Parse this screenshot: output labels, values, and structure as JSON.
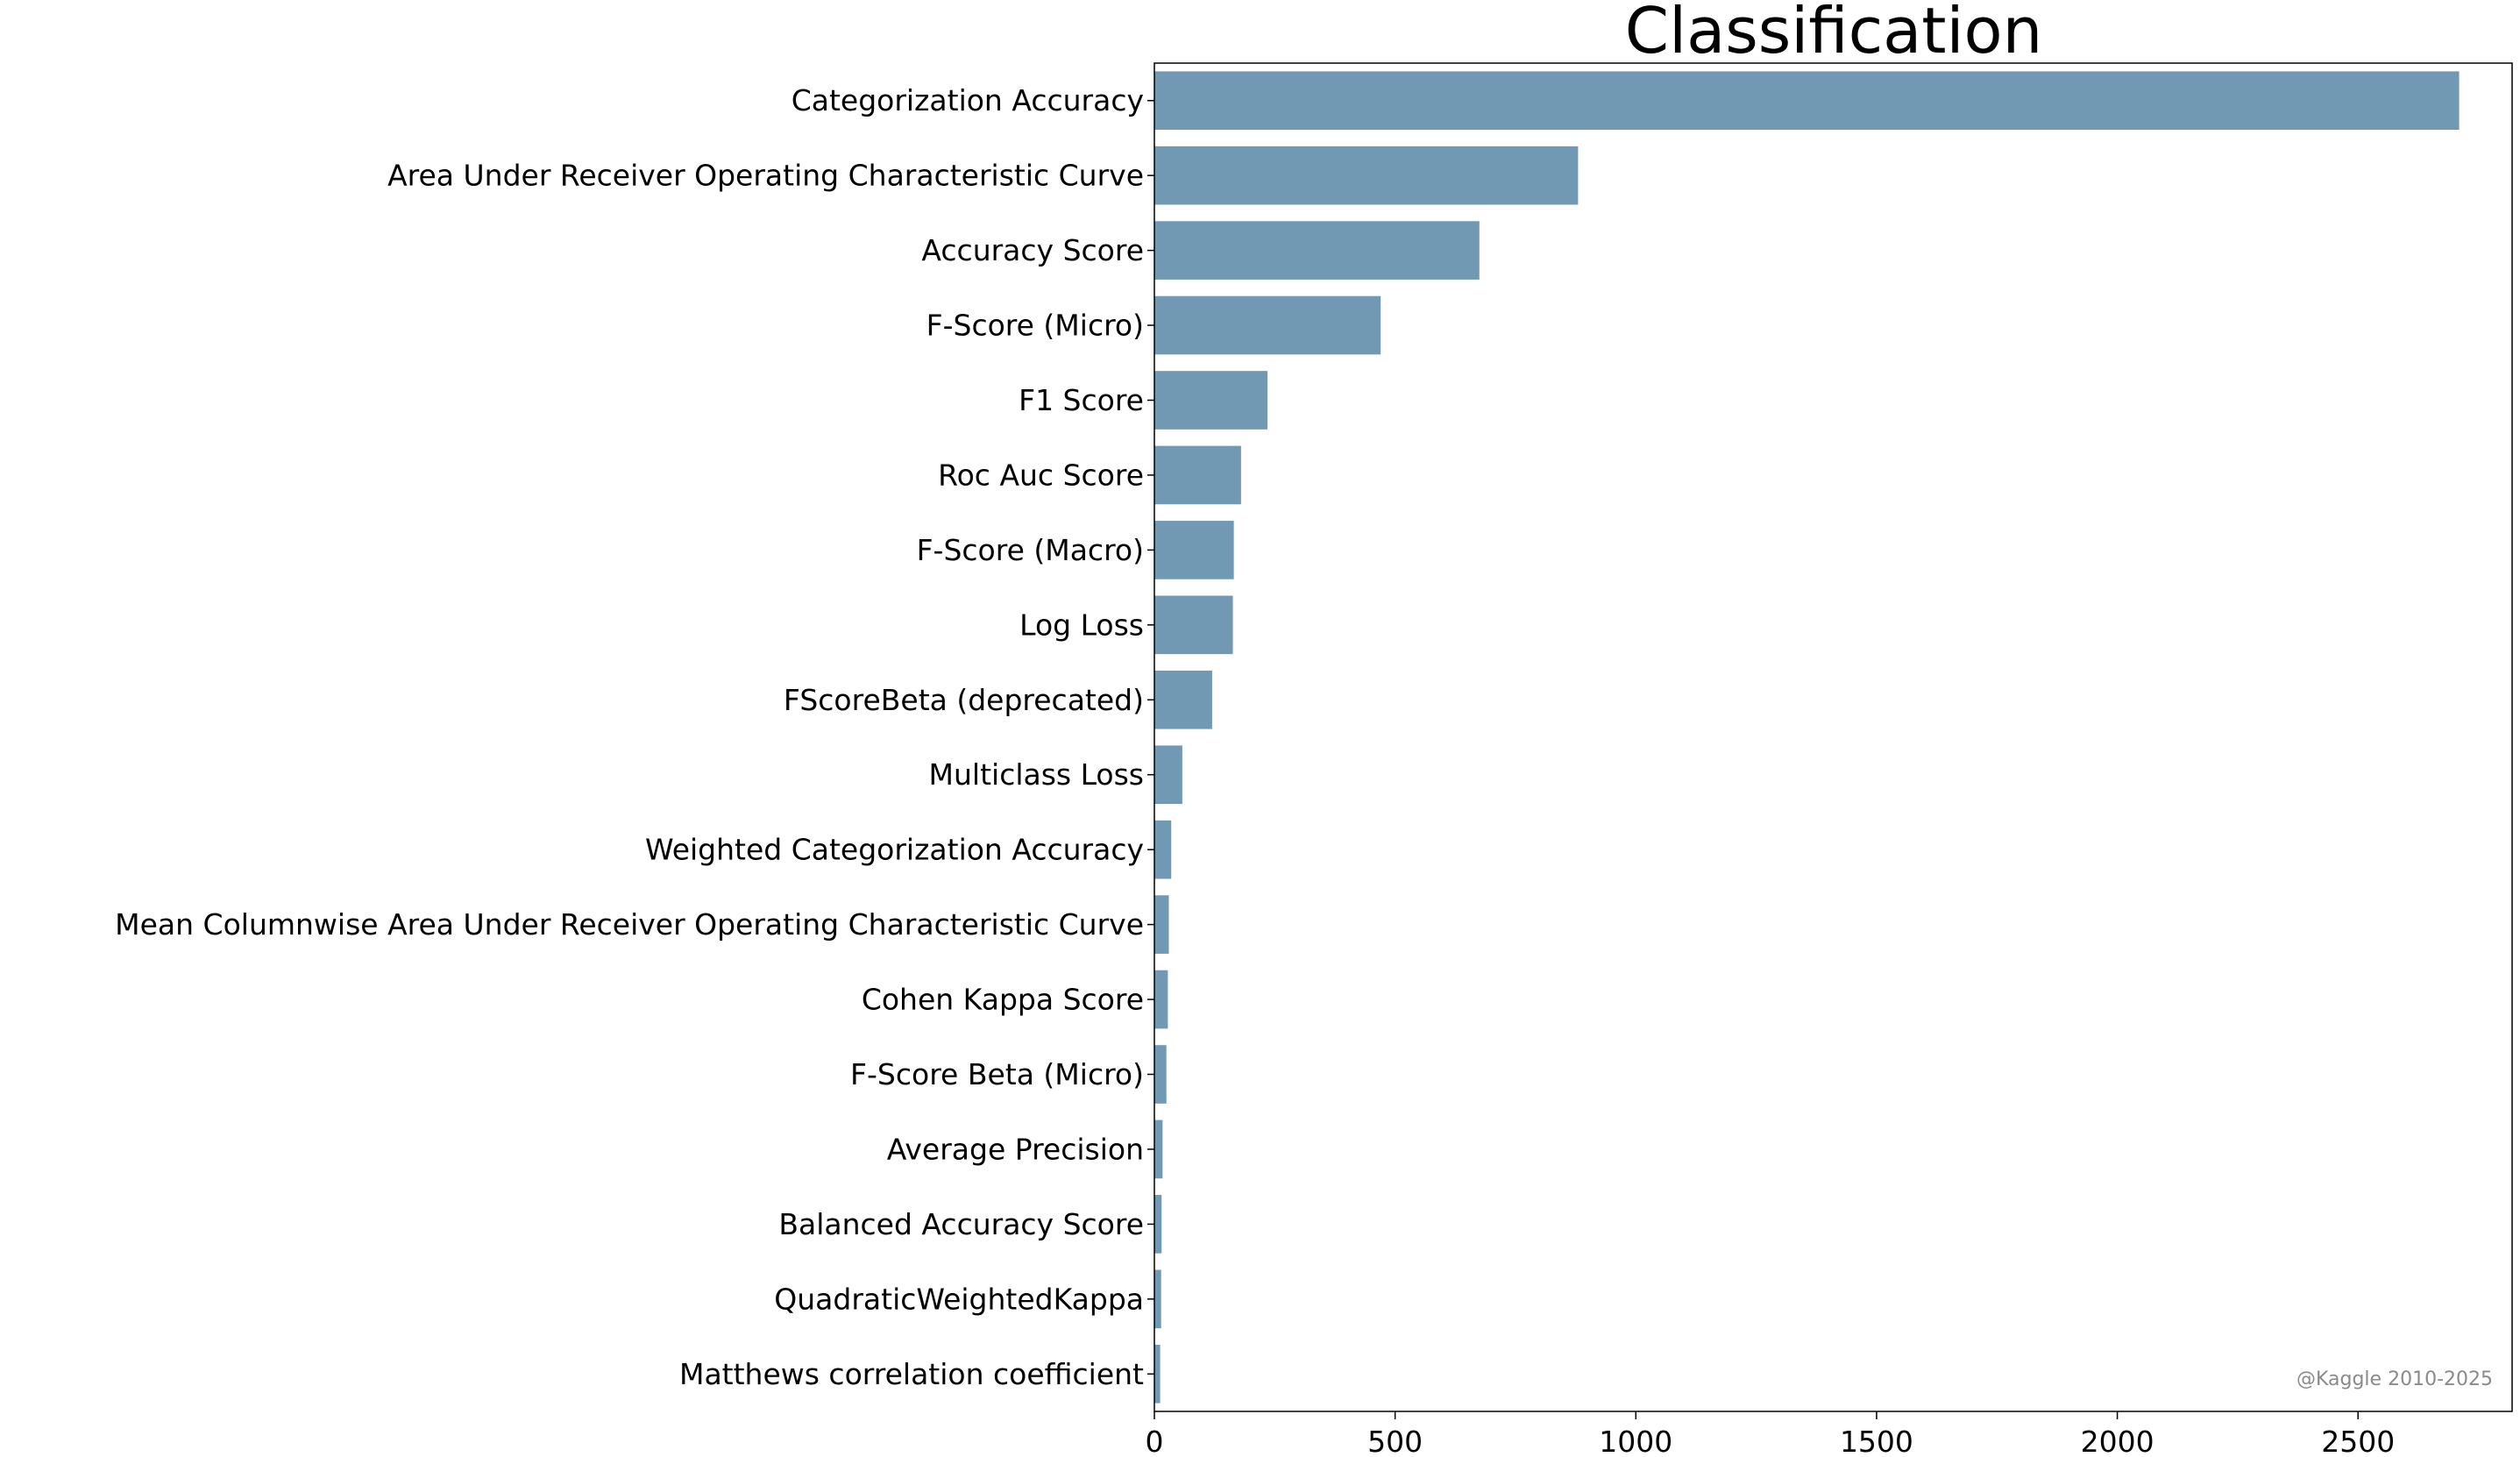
{
  "chart_data": {
    "type": "bar",
    "orientation": "horizontal",
    "title": "Classification",
    "xlabel": "",
    "ylabel": "",
    "xlim": [
      0,
      2820
    ],
    "x_ticks": [
      0,
      500,
      1000,
      1500,
      2000,
      2500
    ],
    "grid": false,
    "bar_color": "#7199b4",
    "categories": [
      "Categorization Accuracy",
      "Area Under Receiver Operating Characteristic Curve",
      "Accuracy Score",
      "F-Score (Micro)",
      "F1 Score",
      "Roc Auc Score",
      "F-Score (Macro)",
      "Log Loss",
      "FScoreBeta (deprecated)",
      "Multiclass Loss",
      "Weighted Categorization Accuracy",
      "Mean Columnwise Area Under Receiver Operating Characteristic Curve",
      "Cohen Kappa Score",
      "F-Score Beta (Micro)",
      "Average Precision",
      "Balanced Accuracy Score",
      "QuadraticWeightedKappa",
      "Matthews correlation coefficient"
    ],
    "values": [
      2710,
      880,
      675,
      470,
      235,
      180,
      165,
      163,
      120,
      58,
      35,
      30,
      28,
      25,
      17,
      15,
      14,
      12
    ],
    "annotation": "@Kaggle 2010-2025"
  }
}
